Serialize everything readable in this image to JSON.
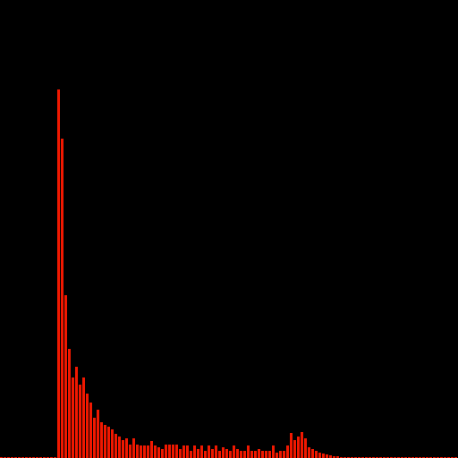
{
  "chart_data": {
    "type": "histogram",
    "color": "#f01800",
    "bins": [
      0,
      2,
      4,
      6,
      8,
      10,
      12,
      14,
      16,
      18,
      20,
      22,
      24,
      26,
      28,
      30,
      32,
      34,
      36,
      38,
      40,
      42,
      44,
      46,
      48,
      50,
      52,
      54,
      56,
      58,
      60,
      62,
      64,
      66,
      68,
      70,
      72,
      74,
      76,
      78,
      80,
      82,
      84,
      86,
      88,
      90,
      92,
      94,
      96,
      98,
      100,
      102,
      104,
      106,
      108,
      110,
      112,
      114,
      116,
      118,
      120,
      122,
      124,
      126,
      128,
      130,
      132,
      134,
      136,
      138,
      140,
      142,
      144,
      146,
      148,
      150,
      152,
      154,
      156,
      158,
      160,
      162,
      164,
      166,
      168,
      170,
      172,
      174,
      176,
      178,
      180,
      182,
      184,
      186,
      188,
      190,
      192,
      194,
      196,
      198,
      200,
      202,
      204,
      206,
      208,
      210,
      212,
      214,
      216,
      218,
      220,
      222,
      224,
      226,
      228,
      230,
      232,
      234,
      236,
      238,
      240,
      242,
      244,
      246,
      248,
      250,
      252,
      254,
      256
    ],
    "values": [
      1,
      1,
      1,
      1,
      1,
      1,
      1,
      1,
      1,
      1,
      1,
      1,
      1,
      1,
      1,
      1,
      412,
      357,
      182,
      122,
      90,
      102,
      82,
      90,
      72,
      62,
      45,
      54,
      40,
      37,
      35,
      32,
      27,
      24,
      20,
      22,
      15,
      22,
      15,
      14,
      14,
      14,
      19,
      14,
      12,
      10,
      15,
      15,
      15,
      15,
      10,
      14,
      14,
      8,
      14,
      10,
      14,
      8,
      14,
      10,
      14,
      8,
      12,
      10,
      8,
      14,
      10,
      8,
      8,
      14,
      8,
      8,
      10,
      8,
      8,
      8,
      14,
      6,
      8,
      8,
      14,
      28,
      20,
      24,
      29,
      22,
      12,
      10,
      8,
      6,
      5,
      4,
      3,
      2,
      2,
      1,
      1,
      1,
      1,
      1,
      1,
      1,
      1,
      1,
      1,
      1,
      1,
      1,
      1,
      1,
      1,
      1,
      1,
      1,
      1,
      1,
      1,
      1,
      1,
      1,
      1,
      1,
      1,
      1,
      1,
      1,
      1,
      1
    ],
    "xlim": [
      0,
      256
    ],
    "ylim": [
      0,
      512
    ]
  }
}
